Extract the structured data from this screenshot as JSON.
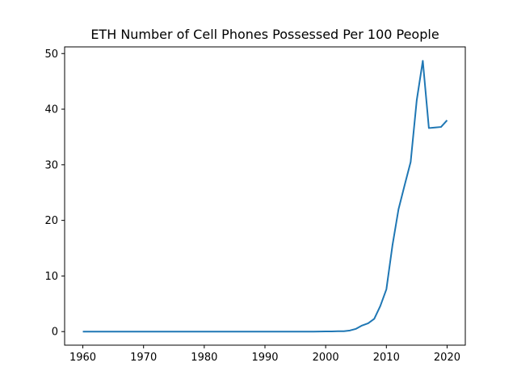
{
  "chart_data": {
    "type": "line",
    "title": "ETH Number of Cell Phones Possessed Per 100 People",
    "xlabel": "",
    "ylabel": "",
    "xlim": [
      1957,
      2023
    ],
    "ylim": [
      -2.44,
      51.2
    ],
    "x_ticks": [
      1960,
      1970,
      1980,
      1990,
      2000,
      2010,
      2020
    ],
    "y_ticks": [
      0,
      10,
      20,
      30,
      40,
      50
    ],
    "grid": false,
    "line_color": "#1f77b4",
    "series": [
      {
        "x": [
          1960,
          1961,
          1962,
          1963,
          1964,
          1965,
          1966,
          1967,
          1968,
          1969,
          1970,
          1971,
          1972,
          1973,
          1974,
          1975,
          1976,
          1977,
          1978,
          1979,
          1980,
          1981,
          1982,
          1983,
          1984,
          1985,
          1986,
          1987,
          1988,
          1989,
          1990,
          1991,
          1992,
          1993,
          1994,
          1995,
          1996,
          1997,
          1998,
          1999,
          2000,
          2001,
          2002,
          2003,
          2004,
          2005,
          2006,
          2007,
          2008,
          2009,
          2010,
          2011,
          2012,
          2013,
          2014,
          2015,
          2016,
          2017,
          2018,
          2019,
          2020
        ],
        "values": [
          0,
          0,
          0,
          0,
          0,
          0,
          0,
          0,
          0,
          0,
          0,
          0,
          0,
          0,
          0,
          0,
          0,
          0,
          0,
          0,
          0,
          0,
          0,
          0,
          0,
          0,
          0,
          0,
          0,
          0,
          0,
          0,
          0,
          0,
          0,
          0,
          0,
          0,
          0,
          0.01,
          0.03,
          0.04,
          0.06,
          0.07,
          0.2,
          0.5,
          1.1,
          1.5,
          2.3,
          4.6,
          7.6,
          15.5,
          22.0,
          26.3,
          30.5,
          41.6,
          48.7,
          36.6,
          36.7,
          36.8,
          38.0
        ]
      }
    ]
  }
}
